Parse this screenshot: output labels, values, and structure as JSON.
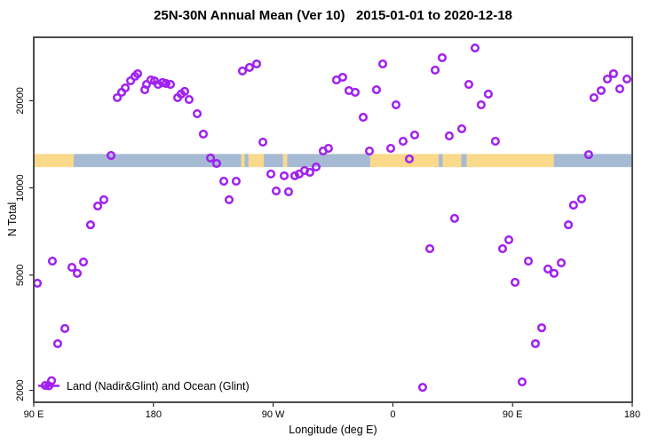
{
  "title": "25N-30N Annual Mean (Ver 10)   2015-01-01 to 2020-12-18",
  "legend": {
    "label": "Land (Nadir&Glint) and Ocean (Glint)"
  },
  "colors": {
    "point": "#A020F0",
    "land": "#FAD98B",
    "ocean": "#A6BAD4",
    "frame": "#4d4d4d",
    "tick": "#000000"
  },
  "chart_data": {
    "type": "scatter",
    "title": "25N-30N Annual Mean (Ver 10)   2015-01-01 to 2020-12-18",
    "xlabel": "Longitude (deg E)",
    "ylabel": "N Total",
    "legend_position": "bottom-left",
    "grid": false,
    "x_axis": {
      "min": 90,
      "max": 540,
      "ticks": [
        {
          "value": 90,
          "label": "90 E"
        },
        {
          "value": 180,
          "label": "180"
        },
        {
          "value": 270,
          "label": "90 W"
        },
        {
          "value": 360,
          "label": "0"
        },
        {
          "value": 450,
          "label": "90 E"
        },
        {
          "value": 540,
          "label": "180"
        }
      ]
    },
    "y_axis": {
      "scale": "log",
      "min": 1820,
      "max": 33110,
      "ticks": [
        {
          "value": 2000,
          "label": "2000"
        },
        {
          "value": 5000,
          "label": "5000"
        },
        {
          "value": 10000,
          "label": "10000"
        },
        {
          "value": 20000,
          "label": "20000"
        }
      ]
    },
    "map_band": {
      "value_range": [
        11800,
        13100
      ],
      "land_color": "#FAD98B",
      "ocean_color": "#A6BAD4",
      "segments": [
        {
          "from": 90,
          "to": 120,
          "surface": "land"
        },
        {
          "from": 120,
          "to": 246,
          "surface": "ocean"
        },
        {
          "from": 246,
          "to": 248.5,
          "surface": "land"
        },
        {
          "from": 248.5,
          "to": 251.5,
          "surface": "ocean"
        },
        {
          "from": 251.5,
          "to": 263,
          "surface": "land"
        },
        {
          "from": 263,
          "to": 277.5,
          "surface": "ocean"
        },
        {
          "from": 277.5,
          "to": 280.5,
          "surface": "land"
        },
        {
          "from": 280.5,
          "to": 343,
          "surface": "ocean"
        },
        {
          "from": 343,
          "to": 394.5,
          "surface": "land"
        },
        {
          "from": 394.5,
          "to": 397.5,
          "surface": "ocean"
        },
        {
          "from": 397.5,
          "to": 411.5,
          "surface": "land"
        },
        {
          "from": 411.5,
          "to": 415.5,
          "surface": "ocean"
        },
        {
          "from": 415.5,
          "to": 481,
          "surface": "land"
        },
        {
          "from": 481,
          "to": 540,
          "surface": "ocean"
        }
      ]
    },
    "series": [
      {
        "name": "Land (Nadir&Glint) and Ocean (Glint)",
        "marker": "open-circle",
        "color": "#A020F0",
        "points": [
          [
            152.8,
            20490
          ],
          [
            156.1,
            21380
          ],
          [
            158.8,
            22140
          ],
          [
            162.8,
            23420
          ],
          [
            166.1,
            24270
          ],
          [
            168.1,
            24790
          ],
          [
            173.5,
            21830
          ],
          [
            174.8,
            22760
          ],
          [
            178.1,
            23590
          ],
          [
            180.8,
            23420
          ],
          [
            183.5,
            22760
          ],
          [
            186.8,
            23110
          ],
          [
            189.5,
            22930
          ],
          [
            192.8,
            22760
          ],
          [
            198.2,
            20490
          ],
          [
            200.8,
            21080
          ],
          [
            203.5,
            21530
          ],
          [
            206.8,
            20190
          ],
          [
            212.9,
            18030
          ],
          [
            217.5,
            15340
          ],
          [
            148.1,
            12940
          ],
          [
            222.9,
            12680
          ],
          [
            227.5,
            12150
          ],
          [
            232.9,
            10550
          ],
          [
            236.9,
            9100
          ],
          [
            142.7,
            9100
          ],
          [
            138.1,
            8660
          ],
          [
            246.9,
            25330
          ],
          [
            252.2,
            26050
          ],
          [
            257.6,
            26790
          ],
          [
            317.6,
            23590
          ],
          [
            322.3,
            24100
          ],
          [
            327.0,
            21680
          ],
          [
            331.7,
            21380
          ],
          [
            347.7,
            21830
          ],
          [
            352.4,
            26790
          ],
          [
            362.4,
            19360
          ],
          [
            337.7,
            17540
          ],
          [
            391.8,
            25510
          ],
          [
            376.4,
            15230
          ],
          [
            367.7,
            14490
          ],
          [
            358.4,
            13700
          ],
          [
            342.4,
            13410
          ],
          [
            311.6,
            13700
          ],
          [
            307.6,
            13410
          ],
          [
            262.3,
            14390
          ],
          [
            372.4,
            12590
          ],
          [
            302.3,
            11810
          ],
          [
            297.6,
            11320
          ],
          [
            293.6,
            11480
          ],
          [
            289.6,
            11170
          ],
          [
            286.3,
            11010
          ],
          [
            278.3,
            11010
          ],
          [
            268.3,
            11170
          ],
          [
            242.2,
            10550
          ],
          [
            272.3,
            9760
          ],
          [
            281.6,
            9700
          ],
          [
            421.8,
            30410
          ],
          [
            397.1,
            28150
          ],
          [
            417.1,
            22760
          ],
          [
            431.8,
            21080
          ],
          [
            426.4,
            19360
          ],
          [
            525.9,
            24790
          ],
          [
            521.3,
            23760
          ],
          [
            536.0,
            23760
          ],
          [
            516.6,
            21680
          ],
          [
            511.2,
            20490
          ],
          [
            530.6,
            21980
          ],
          [
            411.8,
            16000
          ],
          [
            402.4,
            15120
          ],
          [
            437.1,
            14490
          ],
          [
            507.2,
            13030
          ],
          [
            495.8,
            8720
          ],
          [
            501.9,
            9160
          ],
          [
            406.4,
            7850
          ],
          [
            132.7,
            7460
          ],
          [
            104.0,
            5590
          ],
          [
            127.4,
            5550
          ],
          [
            118.7,
            5320
          ],
          [
            122.7,
            5070
          ],
          [
            92.7,
            4690
          ],
          [
            113.4,
            3270
          ],
          [
            108.0,
            2900
          ],
          [
            103.4,
            2160
          ],
          [
            98.7,
            2080
          ],
          [
            387.8,
            6170
          ],
          [
            382.4,
            2050
          ],
          [
            492.0,
            7460
          ],
          [
            447.2,
            6620
          ],
          [
            442.5,
            6170
          ],
          [
            461.9,
            5590
          ],
          [
            476.6,
            5250
          ],
          [
            481.2,
            5070
          ],
          [
            486.6,
            5510
          ],
          [
            451.9,
            4720
          ],
          [
            471.9,
            3290
          ],
          [
            467.2,
            2900
          ],
          [
            457.2,
            2140
          ]
        ]
      }
    ]
  }
}
